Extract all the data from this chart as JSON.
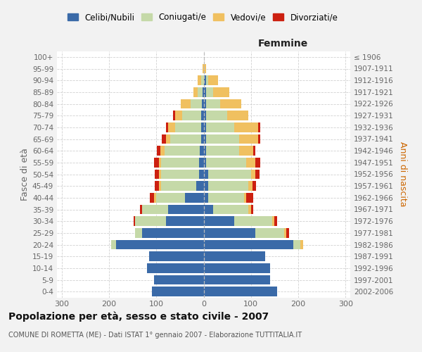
{
  "age_groups": [
    "0-4",
    "5-9",
    "10-14",
    "15-19",
    "20-24",
    "25-29",
    "30-34",
    "35-39",
    "40-44",
    "45-49",
    "50-54",
    "55-59",
    "60-64",
    "65-69",
    "70-74",
    "75-79",
    "80-84",
    "85-89",
    "90-94",
    "95-99",
    "100+"
  ],
  "birth_years": [
    "2002-2006",
    "1997-2001",
    "1992-1996",
    "1987-1991",
    "1982-1986",
    "1977-1981",
    "1972-1976",
    "1967-1971",
    "1962-1966",
    "1957-1961",
    "1952-1956",
    "1947-1951",
    "1942-1946",
    "1937-1941",
    "1932-1936",
    "1927-1931",
    "1922-1926",
    "1917-1921",
    "1912-1916",
    "1907-1911",
    "≤ 1906"
  ],
  "colors": {
    "celibi": "#3a6aa8",
    "coniugati": "#c5d9a8",
    "vedovi": "#f0c060",
    "divorziati": "#cc2010"
  },
  "males_celibi": [
    110,
    105,
    120,
    115,
    185,
    130,
    80,
    75,
    40,
    15,
    10,
    10,
    8,
    5,
    5,
    5,
    3,
    2,
    0,
    0,
    0
  ],
  "males_coniugati": [
    0,
    0,
    0,
    0,
    10,
    15,
    65,
    55,
    60,
    75,
    80,
    80,
    75,
    65,
    55,
    40,
    25,
    10,
    5,
    0,
    0
  ],
  "males_vedovi": [
    0,
    0,
    0,
    0,
    0,
    0,
    0,
    0,
    5,
    5,
    5,
    5,
    8,
    10,
    15,
    15,
    20,
    10,
    8,
    2,
    0
  ],
  "males_divorziati": [
    0,
    0,
    0,
    0,
    0,
    0,
    3,
    5,
    8,
    8,
    8,
    10,
    8,
    8,
    5,
    5,
    0,
    0,
    0,
    0,
    0
  ],
  "fem_nubili": [
    155,
    140,
    140,
    130,
    190,
    110,
    65,
    20,
    10,
    10,
    10,
    5,
    5,
    5,
    5,
    5,
    5,
    5,
    5,
    0,
    0
  ],
  "fem_coniugate": [
    0,
    0,
    0,
    0,
    15,
    60,
    80,
    75,
    75,
    85,
    90,
    85,
    70,
    70,
    60,
    45,
    30,
    15,
    5,
    0,
    0
  ],
  "fem_vedove": [
    0,
    0,
    0,
    0,
    5,
    5,
    5,
    5,
    5,
    8,
    10,
    20,
    30,
    40,
    50,
    45,
    45,
    35,
    20,
    5,
    0
  ],
  "fem_divorziate": [
    0,
    0,
    0,
    0,
    0,
    5,
    5,
    5,
    15,
    8,
    8,
    10,
    5,
    5,
    5,
    0,
    0,
    0,
    0,
    0,
    0
  ],
  "xlim": 310,
  "xticks": [
    -300,
    -200,
    -100,
    0,
    100,
    200,
    300
  ],
  "title": "Popolazione per età, sesso e stato civile - 2007",
  "subtitle": "COMUNE DI ROMETTA (ME) - Dati ISTAT 1° gennaio 2007 - Elaborazione TUTTITALIA.IT",
  "label_femmine": "Femmine",
  "ylabel_left": "Fasce di età",
  "ylabel_right": "Anni di nascita",
  "legend_labels": [
    "Celibi/Nubili",
    "Coniugati/e",
    "Vedovi/e",
    "Divorziati/e"
  ],
  "bg_color": "#f2f2f2",
  "plot_bg": "#ffffff",
  "grid_color": "#cccccc",
  "tick_color": "#666666"
}
